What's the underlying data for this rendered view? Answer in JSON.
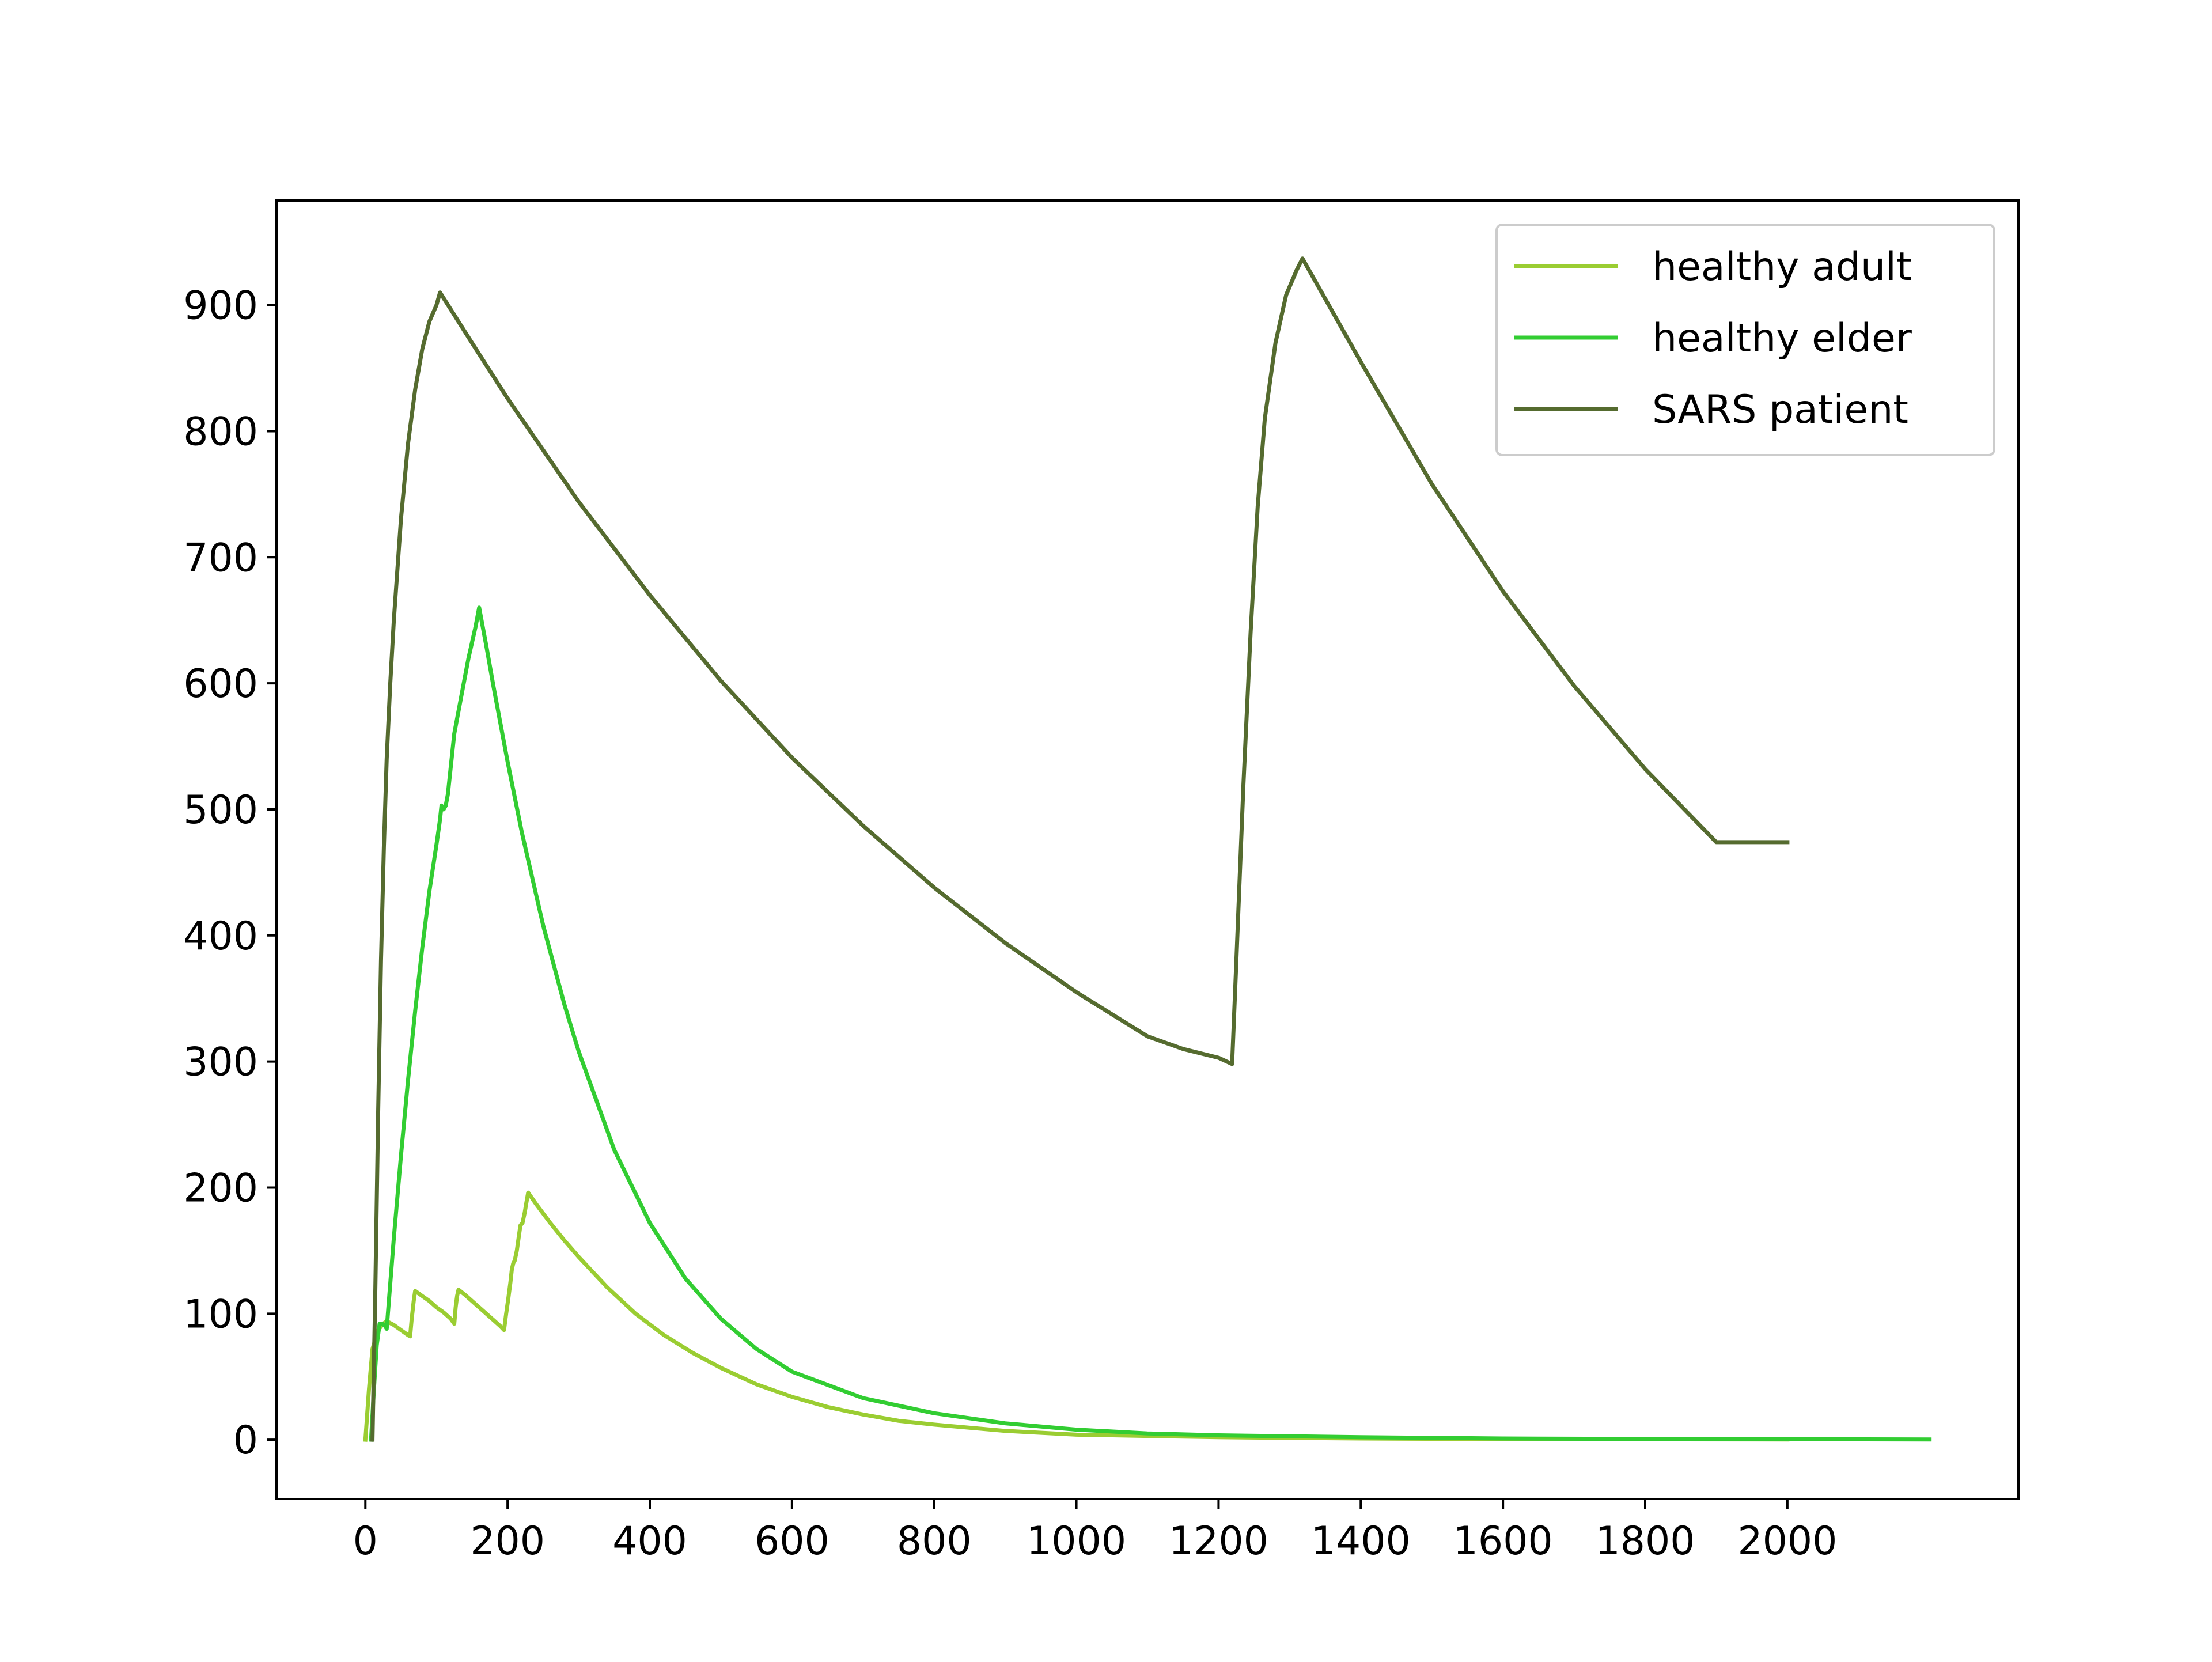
{
  "chart_data": {
    "type": "line",
    "title": "",
    "xlabel": "",
    "ylabel": "",
    "xlim": [
      -125,
      2325
    ],
    "ylim": [
      -47,
      983
    ],
    "xticks": [
      0,
      200,
      400,
      600,
      800,
      1000,
      1200,
      1400,
      1600,
      1800,
      2000
    ],
    "yticks": [
      0,
      100,
      200,
      300,
      400,
      500,
      600,
      700,
      800,
      900
    ],
    "grid": false,
    "legend_position": "top-right",
    "series": [
      {
        "name": "healthy adult",
        "color": "#9acd32",
        "points": [
          [
            0,
            0
          ],
          [
            5,
            40
          ],
          [
            10,
            72
          ],
          [
            18,
            87
          ],
          [
            25,
            92
          ],
          [
            30,
            94
          ],
          [
            40,
            91
          ],
          [
            50,
            87
          ],
          [
            60,
            83
          ],
          [
            63,
            82
          ],
          [
            65,
            95
          ],
          [
            68,
            110
          ],
          [
            70,
            118
          ],
          [
            80,
            114
          ],
          [
            90,
            110
          ],
          [
            100,
            105
          ],
          [
            110,
            101
          ],
          [
            120,
            96
          ],
          [
            125,
            92
          ],
          [
            127,
            105
          ],
          [
            129,
            114
          ],
          [
            131,
            119
          ],
          [
            140,
            115
          ],
          [
            150,
            110
          ],
          [
            160,
            105
          ],
          [
            170,
            100
          ],
          [
            180,
            95
          ],
          [
            190,
            90
          ],
          [
            195,
            87
          ],
          [
            198,
            100
          ],
          [
            201,
            112
          ],
          [
            204,
            125
          ],
          [
            206,
            135
          ],
          [
            208,
            140
          ],
          [
            210,
            142
          ],
          [
            213,
            150
          ],
          [
            216,
            162
          ],
          [
            218,
            170
          ],
          [
            221,
            172
          ],
          [
            224,
            180
          ],
          [
            227,
            190
          ],
          [
            229,
            196
          ],
          [
            240,
            187
          ],
          [
            260,
            172
          ],
          [
            280,
            158
          ],
          [
            300,
            145
          ],
          [
            340,
            121
          ],
          [
            380,
            100
          ],
          [
            420,
            83
          ],
          [
            460,
            69
          ],
          [
            500,
            57
          ],
          [
            550,
            44
          ],
          [
            600,
            34
          ],
          [
            650,
            26
          ],
          [
            700,
            20
          ],
          [
            750,
            15
          ],
          [
            800,
            12
          ],
          [
            900,
            7
          ],
          [
            1000,
            4
          ],
          [
            1100,
            3
          ],
          [
            1200,
            2
          ],
          [
            1400,
            1
          ],
          [
            1600,
            0.5
          ],
          [
            1800,
            0.3
          ],
          [
            2000,
            0.2
          ]
        ]
      },
      {
        "name": "healthy elder",
        "color": "#32cd32",
        "points": [
          [
            8,
            0
          ],
          [
            12,
            40
          ],
          [
            16,
            75
          ],
          [
            20,
            92
          ],
          [
            24,
            92
          ],
          [
            28,
            90
          ],
          [
            30,
            88
          ],
          [
            40,
            160
          ],
          [
            50,
            225
          ],
          [
            60,
            285
          ],
          [
            70,
            340
          ],
          [
            80,
            390
          ],
          [
            90,
            435
          ],
          [
            100,
            472
          ],
          [
            105,
            492
          ],
          [
            107,
            503
          ],
          [
            110,
            500
          ],
          [
            113,
            503
          ],
          [
            116,
            512
          ],
          [
            125,
            560
          ],
          [
            135,
            590
          ],
          [
            145,
            620
          ],
          [
            155,
            645
          ],
          [
            160,
            660
          ],
          [
            170,
            630
          ],
          [
            180,
            598
          ],
          [
            200,
            538
          ],
          [
            220,
            482
          ],
          [
            250,
            408
          ],
          [
            280,
            345
          ],
          [
            300,
            308
          ],
          [
            350,
            230
          ],
          [
            400,
            172
          ],
          [
            450,
            128
          ],
          [
            500,
            96
          ],
          [
            550,
            72
          ],
          [
            600,
            54
          ],
          [
            700,
            33
          ],
          [
            800,
            21
          ],
          [
            900,
            13
          ],
          [
            1000,
            8
          ],
          [
            1100,
            5
          ],
          [
            1200,
            3.5
          ],
          [
            1400,
            2
          ],
          [
            1600,
            1
          ],
          [
            1800,
            0.6
          ],
          [
            2000,
            0.4
          ],
          [
            2200,
            0.2
          ]
        ]
      },
      {
        "name": "SARS patient",
        "color": "#556b2f",
        "points": [
          [
            10,
            0
          ],
          [
            14,
            120
          ],
          [
            18,
            260
          ],
          [
            22,
            380
          ],
          [
            26,
            470
          ],
          [
            30,
            540
          ],
          [
            35,
            600
          ],
          [
            40,
            650
          ],
          [
            50,
            730
          ],
          [
            60,
            790
          ],
          [
            70,
            833
          ],
          [
            80,
            865
          ],
          [
            90,
            887
          ],
          [
            100,
            900
          ],
          [
            105,
            910
          ],
          [
            150,
            870
          ],
          [
            200,
            826
          ],
          [
            300,
            744
          ],
          [
            400,
            670
          ],
          [
            500,
            602
          ],
          [
            600,
            541
          ],
          [
            700,
            487
          ],
          [
            800,
            438
          ],
          [
            900,
            394
          ],
          [
            1000,
            355
          ],
          [
            1100,
            320
          ],
          [
            1150,
            310
          ],
          [
            1200,
            303
          ],
          [
            1219,
            298
          ],
          [
            1225,
            380
          ],
          [
            1235,
            520
          ],
          [
            1245,
            640
          ],
          [
            1255,
            740
          ],
          [
            1265,
            810
          ],
          [
            1280,
            870
          ],
          [
            1295,
            908
          ],
          [
            1310,
            928
          ],
          [
            1318,
            937
          ],
          [
            1400,
            855
          ],
          [
            1500,
            758
          ],
          [
            1600,
            673
          ],
          [
            1700,
            598
          ],
          [
            1800,
            532
          ],
          [
            1900,
            474
          ],
          [
            2000,
            474
          ]
        ]
      }
    ]
  }
}
